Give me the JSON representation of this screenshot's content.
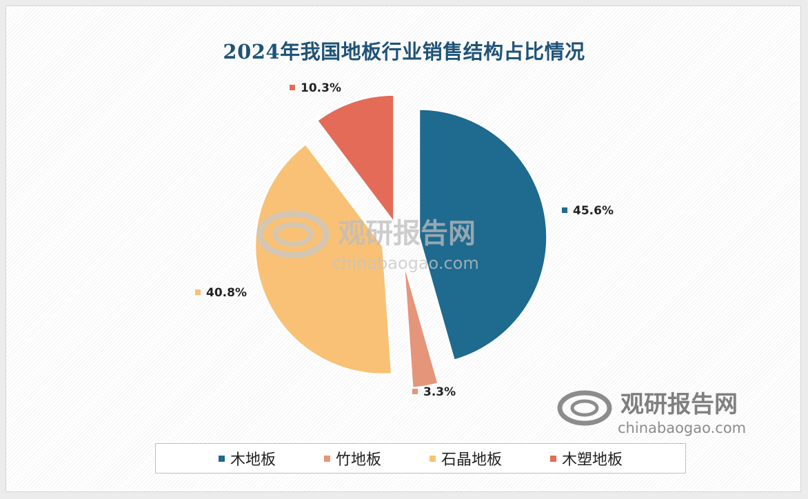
{
  "chart_data": {
    "type": "pie",
    "title": "2024年我国地板行业销售结构占比情况",
    "categories": [
      "木地板",
      "竹地板",
      "石晶地板",
      "木塑地板"
    ],
    "values": [
      45.6,
      3.3,
      40.8,
      10.3
    ],
    "data_labels": [
      "45.6%",
      "3.3%",
      "40.8%",
      "10.3%"
    ],
    "colors": [
      "#1f6a8f",
      "#e5957a",
      "#f8c176",
      "#e36b58"
    ],
    "exploded": true,
    "legend_placement": "bottom"
  },
  "watermark": {
    "name": "观研报告网",
    "url": "chinabaogao.com"
  }
}
